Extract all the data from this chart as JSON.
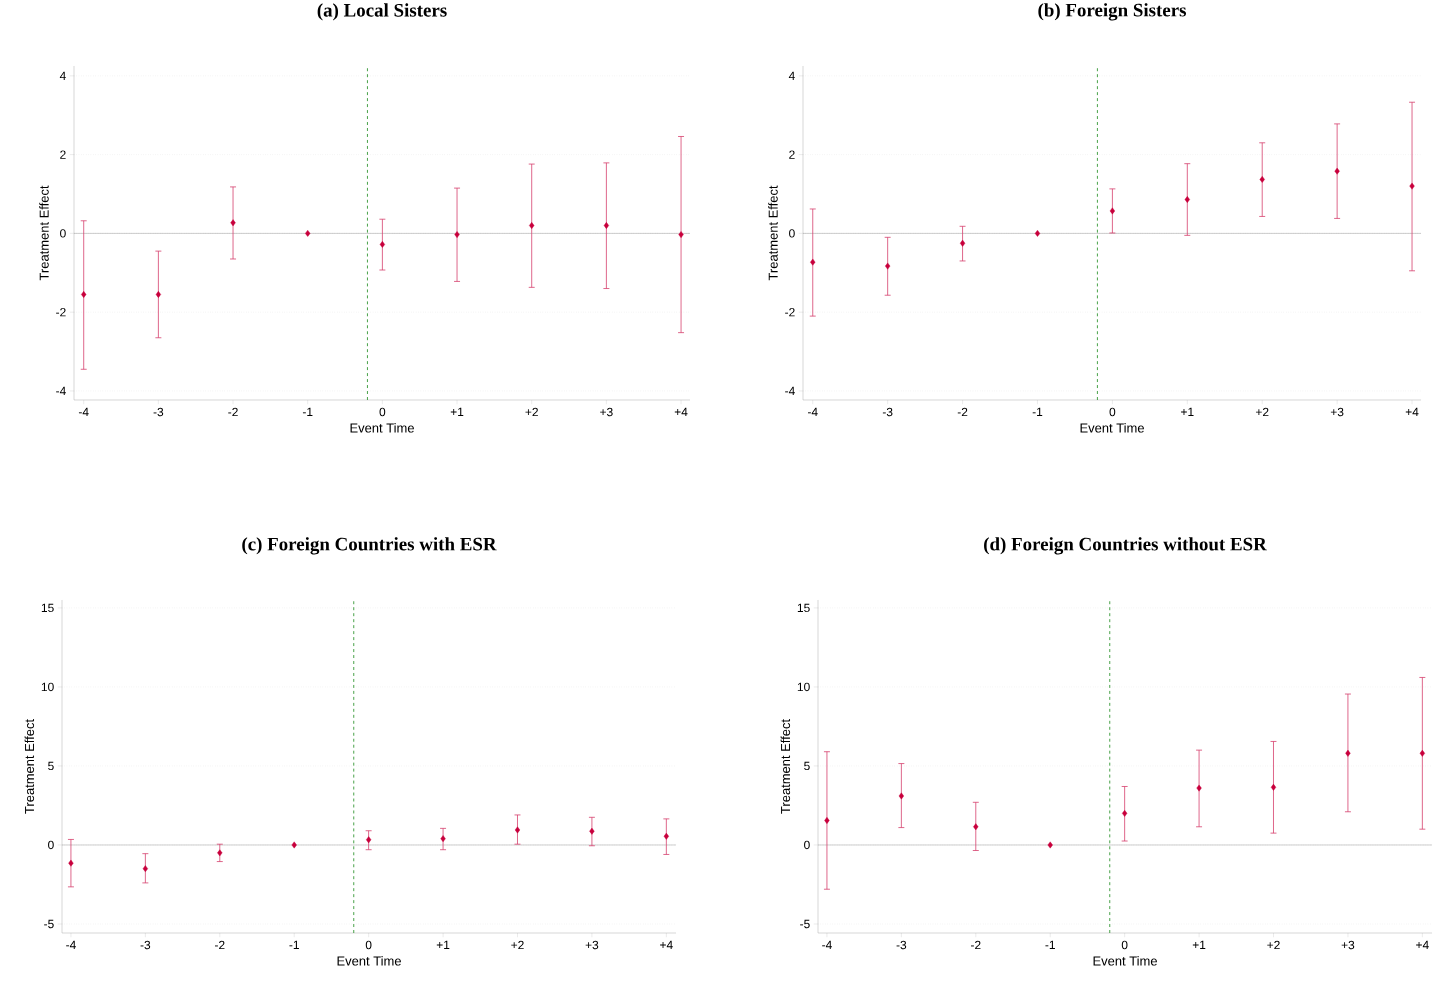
{
  "chart_data": [
    {
      "type": "scatter",
      "title": "(a) Local Sisters",
      "xlabel": "Event Time",
      "ylabel": "Treatment Effect",
      "color": "#c8003c",
      "marker": "diamond",
      "grid": "y",
      "x": [
        -4,
        -3,
        -2,
        -1,
        0,
        1,
        2,
        3,
        4
      ],
      "values": [
        -1.55,
        -1.55,
        0.27,
        0,
        -0.28,
        -0.03,
        0.2,
        0.2,
        -0.03
      ],
      "errors": [
        [
          -3.45,
          0.32
        ],
        [
          -2.65,
          -0.45
        ],
        [
          -0.65,
          1.18
        ],
        null,
        [
          -0.93,
          0.36
        ],
        [
          -1.22,
          1.15
        ],
        [
          -1.37,
          1.76
        ],
        [
          -1.4,
          1.79
        ],
        [
          -2.52,
          2.46
        ]
      ],
      "xlim": [
        -4.13,
        4.12
      ],
      "ylim": [
        -4.23,
        4.25
      ],
      "xticks": [
        -4,
        -3,
        -2,
        -1,
        0,
        {
          "value": 1,
          "label": "+1"
        },
        {
          "value": 2,
          "label": "+2"
        },
        {
          "value": 3,
          "label": "+3"
        },
        {
          "value": 4,
          "label": "+4"
        }
      ],
      "yticks": [
        -4,
        -2,
        0,
        2,
        4
      ],
      "ref_lines": [
        {
          "axis": "x",
          "value": -0.2,
          "color": "#1a8a1a",
          "line_style": "dashed"
        },
        {
          "axis": "y",
          "value": 0,
          "color": "#808080",
          "line_style": "solid"
        }
      ]
    },
    {
      "type": "scatter",
      "title": "(b) Foreign Sisters",
      "xlabel": "Event Time",
      "ylabel": "Treatment Effect",
      "color": "#c8003c",
      "marker": "diamond",
      "grid": "y",
      "x": [
        -4,
        -3,
        -2,
        -1,
        0,
        1,
        2,
        3,
        4
      ],
      "values": [
        -0.73,
        -0.83,
        -0.25,
        0,
        0.57,
        0.86,
        1.37,
        1.58,
        1.2
      ],
      "errors": [
        [
          -2.1,
          0.62
        ],
        [
          -1.57,
          -0.1
        ],
        [
          -0.7,
          0.18
        ],
        null,
        [
          0.01,
          1.13
        ],
        [
          -0.05,
          1.77
        ],
        [
          0.43,
          2.3
        ],
        [
          0.38,
          2.78
        ],
        [
          -0.95,
          3.33
        ]
      ],
      "xlim": [
        -4.13,
        4.12
      ],
      "ylim": [
        -4.23,
        4.25
      ],
      "xticks": [
        -4,
        -3,
        -2,
        -1,
        0,
        {
          "value": 1,
          "label": "+1"
        },
        {
          "value": 2,
          "label": "+2"
        },
        {
          "value": 3,
          "label": "+3"
        },
        {
          "value": 4,
          "label": "+4"
        }
      ],
      "yticks": [
        -4,
        -2,
        0,
        2,
        4
      ],
      "ref_lines": [
        {
          "axis": "x",
          "value": -0.2,
          "color": "#1a8a1a",
          "line_style": "dashed"
        },
        {
          "axis": "y",
          "value": 0,
          "color": "#808080",
          "line_style": "solid"
        }
      ]
    },
    {
      "type": "scatter",
      "title": "(c) Foreign Countries with ESR",
      "xlabel": "Event Time",
      "ylabel": "Treatment Effect",
      "color": "#c8003c",
      "marker": "diamond",
      "grid": "y",
      "x": [
        -4,
        -3,
        -2,
        -1,
        0,
        1,
        2,
        3,
        4
      ],
      "values": [
        -1.15,
        -1.5,
        -0.5,
        0,
        0.33,
        0.4,
        0.95,
        0.87,
        0.55
      ],
      "errors": [
        [
          -2.65,
          0.35
        ],
        [
          -2.4,
          -0.55
        ],
        [
          -1.05,
          0.05
        ],
        null,
        [
          -0.3,
          0.9
        ],
        [
          -0.3,
          1.05
        ],
        [
          0.05,
          1.9
        ],
        [
          -0.05,
          1.75
        ],
        [
          -0.6,
          1.65
        ]
      ],
      "xlim": [
        -4.12,
        4.13
      ],
      "ylim": [
        -5.57,
        15.5
      ],
      "xticks": [
        -4,
        -3,
        -2,
        -1,
        0,
        {
          "value": 1,
          "label": "+1"
        },
        {
          "value": 2,
          "label": "+2"
        },
        {
          "value": 3,
          "label": "+3"
        },
        {
          "value": 4,
          "label": "+4"
        }
      ],
      "yticks": [
        -5,
        0,
        5,
        10,
        15
      ],
      "ref_lines": [
        {
          "axis": "x",
          "value": -0.2,
          "color": "#1a8a1a",
          "line_style": "dashed"
        },
        {
          "axis": "y",
          "value": 0,
          "color": "#808080",
          "line_style": "solid"
        }
      ]
    },
    {
      "type": "scatter",
      "title": "(d) Foreign Countries without ESR",
      "xlabel": "Event Time",
      "ylabel": "Treatment Effect",
      "color": "#c8003c",
      "marker": "diamond",
      "grid": "y",
      "x": [
        -4,
        -3,
        -2,
        -1,
        0,
        1,
        2,
        3,
        4
      ],
      "values": [
        1.55,
        3.1,
        1.15,
        0,
        2.0,
        3.6,
        3.65,
        5.8,
        5.8
      ],
      "errors": [
        [
          -2.8,
          5.9
        ],
        [
          1.1,
          5.15
        ],
        [
          -0.35,
          2.7
        ],
        null,
        [
          0.25,
          3.7
        ],
        [
          1.15,
          6.0
        ],
        [
          0.75,
          6.55
        ],
        [
          2.1,
          9.55
        ],
        [
          1.0,
          10.6
        ]
      ],
      "xlim": [
        -4.12,
        4.13
      ],
      "ylim": [
        -5.57,
        15.5
      ],
      "xticks": [
        -4,
        -3,
        -2,
        -1,
        0,
        {
          "value": 1,
          "label": "+1"
        },
        {
          "value": 2,
          "label": "+2"
        },
        {
          "value": 3,
          "label": "+3"
        },
        {
          "value": 4,
          "label": "+4"
        }
      ],
      "yticks": [
        -5,
        0,
        5,
        10,
        15
      ],
      "ref_lines": [
        {
          "axis": "x",
          "value": -0.2,
          "color": "#1a8a1a",
          "line_style": "dashed"
        },
        {
          "axis": "y",
          "value": 0,
          "color": "#808080",
          "line_style": "solid"
        }
      ]
    }
  ]
}
